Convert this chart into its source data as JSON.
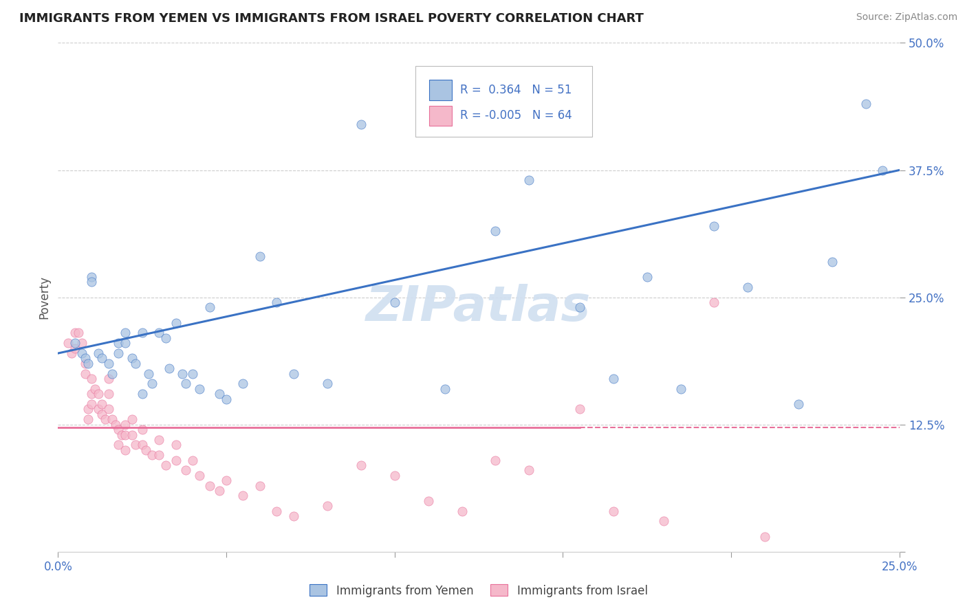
{
  "title": "IMMIGRANTS FROM YEMEN VS IMMIGRANTS FROM ISRAEL POVERTY CORRELATION CHART",
  "source": "Source: ZipAtlas.com",
  "ylabel_label": "Poverty",
  "x_min": 0.0,
  "x_max": 0.25,
  "y_min": 0.0,
  "y_max": 0.5,
  "x_ticks": [
    0.0,
    0.05,
    0.1,
    0.15,
    0.2,
    0.25
  ],
  "x_tick_labels": [
    "0.0%",
    "",
    "",
    "",
    "",
    "25.0%"
  ],
  "y_ticks": [
    0.0,
    0.125,
    0.25,
    0.375,
    0.5
  ],
  "y_tick_labels": [
    "",
    "12.5%",
    "25.0%",
    "37.5%",
    "50.0%"
  ],
  "r_yemen": 0.364,
  "n_yemen": 51,
  "r_israel": -0.005,
  "n_israel": 64,
  "color_yemen": "#aac4e2",
  "color_israel": "#f5b8ca",
  "line_color_yemen": "#3a72c4",
  "line_color_israel": "#e8709a",
  "scatter_alpha": 0.75,
  "marker_size": 90,
  "watermark": "ZIPatlas",
  "watermark_color": "#d0dff0",
  "yemen_line_x0": 0.0,
  "yemen_line_y0": 0.195,
  "yemen_line_x1": 0.25,
  "yemen_line_y1": 0.375,
  "israel_line_y": 0.122,
  "israel_line_solid_end": 0.155,
  "yemen_scatter_x": [
    0.005,
    0.007,
    0.008,
    0.009,
    0.01,
    0.01,
    0.012,
    0.013,
    0.015,
    0.016,
    0.018,
    0.018,
    0.02,
    0.02,
    0.022,
    0.023,
    0.025,
    0.025,
    0.027,
    0.028,
    0.03,
    0.032,
    0.033,
    0.035,
    0.037,
    0.038,
    0.04,
    0.042,
    0.045,
    0.048,
    0.05,
    0.055,
    0.06,
    0.065,
    0.07,
    0.08,
    0.09,
    0.1,
    0.115,
    0.13,
    0.14,
    0.155,
    0.165,
    0.175,
    0.185,
    0.195,
    0.205,
    0.22,
    0.23,
    0.24,
    0.245
  ],
  "yemen_scatter_y": [
    0.205,
    0.195,
    0.19,
    0.185,
    0.27,
    0.265,
    0.195,
    0.19,
    0.185,
    0.175,
    0.205,
    0.195,
    0.215,
    0.205,
    0.19,
    0.185,
    0.215,
    0.155,
    0.175,
    0.165,
    0.215,
    0.21,
    0.18,
    0.225,
    0.175,
    0.165,
    0.175,
    0.16,
    0.24,
    0.155,
    0.15,
    0.165,
    0.29,
    0.245,
    0.175,
    0.165,
    0.42,
    0.245,
    0.16,
    0.315,
    0.365,
    0.24,
    0.17,
    0.27,
    0.16,
    0.32,
    0.26,
    0.145,
    0.285,
    0.44,
    0.375
  ],
  "israel_scatter_x": [
    0.003,
    0.004,
    0.005,
    0.005,
    0.006,
    0.007,
    0.008,
    0.008,
    0.009,
    0.009,
    0.01,
    0.01,
    0.01,
    0.011,
    0.012,
    0.012,
    0.013,
    0.013,
    0.014,
    0.015,
    0.015,
    0.015,
    0.016,
    0.017,
    0.018,
    0.018,
    0.019,
    0.02,
    0.02,
    0.02,
    0.022,
    0.022,
    0.023,
    0.025,
    0.025,
    0.026,
    0.028,
    0.03,
    0.03,
    0.032,
    0.035,
    0.035,
    0.038,
    0.04,
    0.042,
    0.045,
    0.048,
    0.05,
    0.055,
    0.06,
    0.065,
    0.07,
    0.08,
    0.09,
    0.1,
    0.11,
    0.12,
    0.13,
    0.14,
    0.155,
    0.165,
    0.18,
    0.195,
    0.21
  ],
  "israel_scatter_y": [
    0.205,
    0.195,
    0.215,
    0.2,
    0.215,
    0.205,
    0.185,
    0.175,
    0.14,
    0.13,
    0.17,
    0.155,
    0.145,
    0.16,
    0.155,
    0.14,
    0.145,
    0.135,
    0.13,
    0.17,
    0.155,
    0.14,
    0.13,
    0.125,
    0.12,
    0.105,
    0.115,
    0.125,
    0.115,
    0.1,
    0.13,
    0.115,
    0.105,
    0.12,
    0.105,
    0.1,
    0.095,
    0.11,
    0.095,
    0.085,
    0.105,
    0.09,
    0.08,
    0.09,
    0.075,
    0.065,
    0.06,
    0.07,
    0.055,
    0.065,
    0.04,
    0.035,
    0.045,
    0.085,
    0.075,
    0.05,
    0.04,
    0.09,
    0.08,
    0.14,
    0.04,
    0.03,
    0.245,
    0.015
  ]
}
